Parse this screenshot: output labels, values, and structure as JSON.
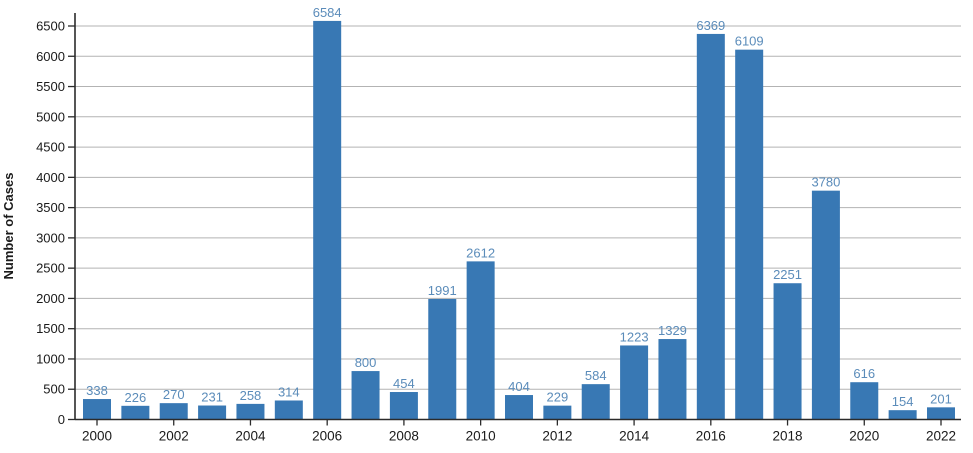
{
  "chart_data": {
    "type": "bar",
    "title": "",
    "xlabel": "",
    "ylabel": "Number of Cases",
    "categories": [
      "2000",
      "2001",
      "2002",
      "2003",
      "2004",
      "2005",
      "2006",
      "2007",
      "2008",
      "2009",
      "2010",
      "2011",
      "2012",
      "2013",
      "2014",
      "2015",
      "2016",
      "2017",
      "2018",
      "2019",
      "2020",
      "2021",
      "2022"
    ],
    "values": [
      338,
      226,
      270,
      231,
      258,
      314,
      6584,
      800,
      454,
      1991,
      2612,
      404,
      229,
      584,
      1223,
      1329,
      6369,
      6109,
      2251,
      3780,
      616,
      154,
      201
    ],
    "value_labels": [
      "338",
      "226",
      "270",
      "231",
      "258",
      "314",
      "6584",
      "800",
      "454",
      "1991",
      "2612",
      "404",
      "229",
      "584",
      "1223",
      "1329",
      "6369",
      "6109",
      "2251",
      "3780",
      "616",
      "154",
      "201"
    ],
    "x_tick_labels": [
      "2000",
      "2002",
      "2004",
      "2006",
      "2008",
      "2010",
      "2012",
      "2014",
      "2016",
      "2018",
      "2020",
      "2022"
    ],
    "y_tick_labels": [
      "0",
      "500",
      "1000",
      "1500",
      "2000",
      "2500",
      "3000",
      "3500",
      "4000",
      "4500",
      "5000",
      "5500",
      "6000",
      "6500"
    ],
    "ylim": [
      0,
      6500
    ],
    "y_tick_step": 500,
    "grid": "horizontal",
    "legend": "none",
    "colors": {
      "bar": "#3878b4",
      "value_label": "#5b8cba",
      "grid": "#b3b3b3",
      "axis": "#2b2b2b",
      "tick_text": "#1a1a1a",
      "background": "#ffffff"
    }
  }
}
